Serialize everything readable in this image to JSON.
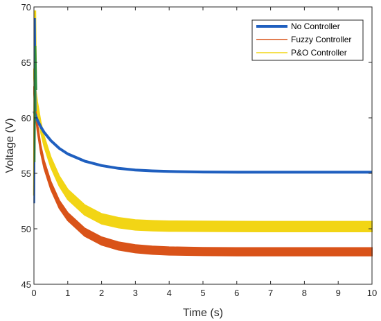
{
  "chart_data": {
    "type": "line",
    "xlabel": "Time (s)",
    "ylabel": "Voltage (V)",
    "xlim": [
      0,
      10
    ],
    "ylim": [
      45,
      70
    ],
    "xticks": [
      0,
      1,
      2,
      3,
      4,
      5,
      6,
      7,
      8,
      9,
      10
    ],
    "yticks": [
      45,
      50,
      55,
      60,
      65,
      70
    ],
    "grid": false,
    "legend_position": "top-right",
    "series": [
      {
        "name": "No Controller",
        "color": "#1f5fbf",
        "band": [
          0,
          0
        ],
        "x": [
          0,
          0.05,
          0.1,
          0.2,
          0.3,
          0.5,
          0.75,
          1,
          1.5,
          2,
          2.5,
          3,
          3.5,
          4,
          5,
          6,
          7,
          8,
          9,
          10
        ],
        "y": [
          60.6,
          60.2,
          59.8,
          59.2,
          58.7,
          57.95,
          57.25,
          56.75,
          56.1,
          55.7,
          55.45,
          55.3,
          55.22,
          55.17,
          55.12,
          55.1,
          55.1,
          55.1,
          55.1,
          55.1
        ]
      },
      {
        "name": "Fuzzy Controller",
        "color": "#d95319",
        "band": [
          -0.35,
          0.35
        ],
        "x": [
          0,
          0.05,
          0.1,
          0.2,
          0.3,
          0.5,
          0.75,
          1,
          1.5,
          2,
          2.5,
          3,
          3.5,
          4,
          5,
          6,
          7,
          8,
          9,
          10
        ],
        "y": [
          62.5,
          60.5,
          59.2,
          57.2,
          55.8,
          53.9,
          52.2,
          51.1,
          49.7,
          48.9,
          48.45,
          48.2,
          48.07,
          48.0,
          47.95,
          47.93,
          47.93,
          47.93,
          47.93,
          47.93
        ]
      },
      {
        "name": "P&O Controller",
        "color": "#f2d515",
        "band": [
          -0.45,
          0.45
        ],
        "x": [
          0,
          0.05,
          0.1,
          0.2,
          0.3,
          0.5,
          0.75,
          1,
          1.5,
          2,
          2.5,
          3,
          3.5,
          4,
          5,
          6,
          7,
          8,
          9,
          10
        ],
        "y": [
          64.0,
          62.2,
          61.0,
          59.2,
          57.9,
          56.0,
          54.3,
          53.1,
          51.7,
          50.9,
          50.55,
          50.35,
          50.28,
          50.24,
          50.22,
          50.21,
          50.2,
          50.2,
          50.2,
          50.2
        ]
      }
    ],
    "transient": [
      {
        "color": "#f2d515",
        "x": [
          0.0,
          0.02,
          0.04,
          0.06
        ],
        "y": [
          53.0,
          69.6,
          69.6,
          64.0
        ]
      },
      {
        "color": "#1f5fbf",
        "x": [
          0.01,
          0.03,
          0.05
        ],
        "y": [
          52.3,
          69.0,
          60.6
        ]
      },
      {
        "color": "#2e8b3e",
        "x": [
          0.02,
          0.045,
          0.07
        ],
        "y": [
          56.0,
          66.5,
          62.5
        ]
      }
    ]
  }
}
